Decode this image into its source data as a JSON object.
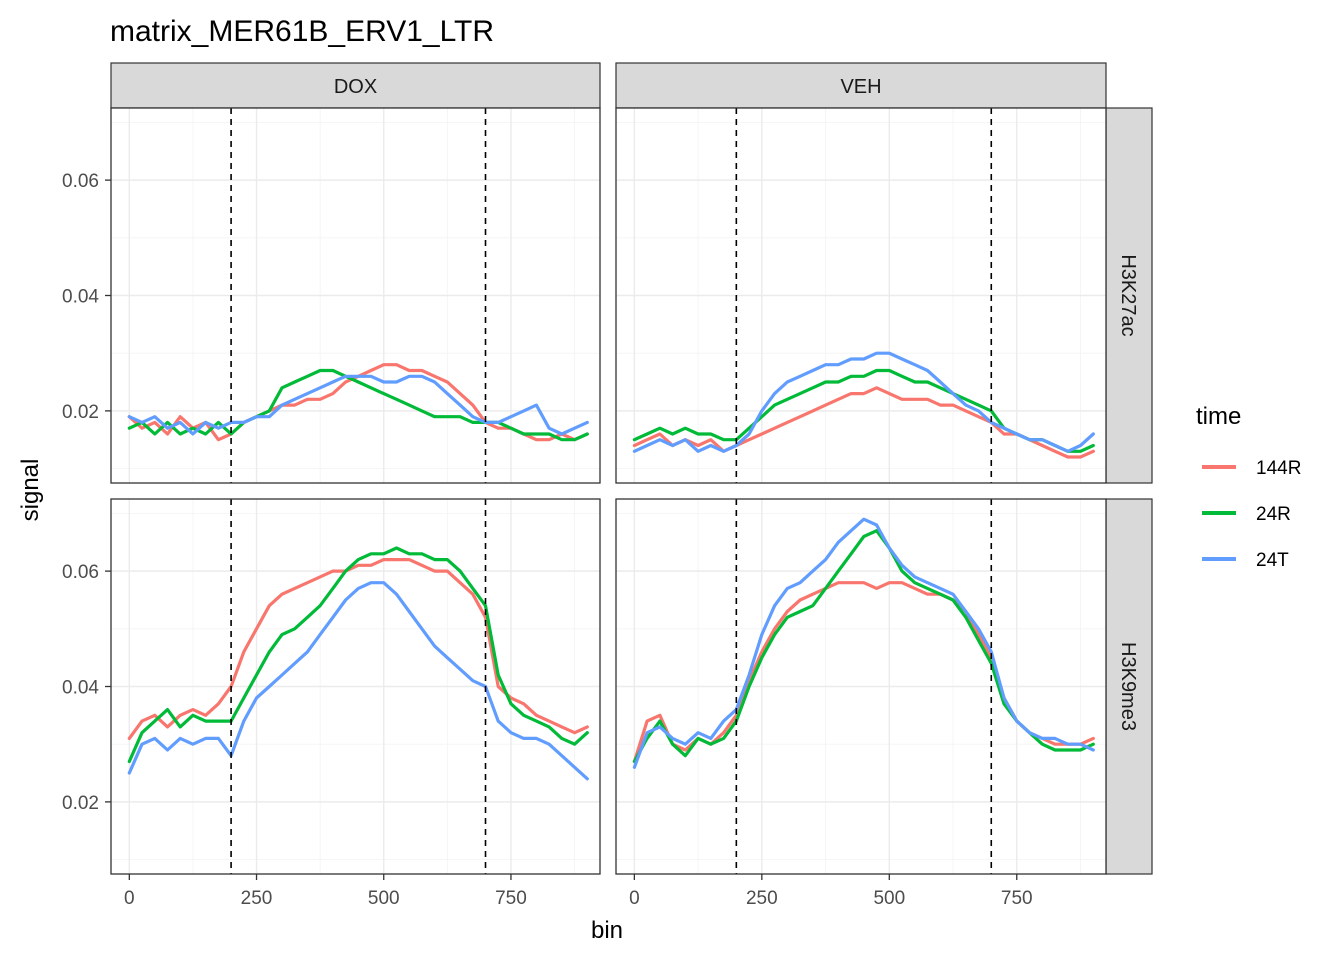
{
  "chart_data": {
    "type": "line",
    "title": "matrix_MER61B_ERV1_LTR",
    "xlabel": "bin",
    "ylabel": "signal",
    "xlim": [
      -36,
      925
    ],
    "ylim": [
      0.0075,
      0.0725
    ],
    "x_ticks": [
      0,
      250,
      500,
      750
    ],
    "x_tick_labels": [
      "0",
      "250",
      "500",
      "750"
    ],
    "y_ticks": [
      0.02,
      0.04,
      0.06
    ],
    "y_tick_labels": [
      "0.02",
      "0.04",
      "0.06"
    ],
    "grid": true,
    "legend_position": "right",
    "legend_title": "time",
    "reference_lines_x": [
      200,
      700
    ],
    "facet_cols": [
      "DOX",
      "VEH"
    ],
    "facet_rows": [
      "H3K27ac",
      "H3K9me3"
    ],
    "series_info": [
      {
        "name": "144R",
        "color": "#F8766D"
      },
      {
        "name": "24R",
        "color": "#00BA38"
      },
      {
        "name": "24T",
        "color": "#619CFF"
      }
    ],
    "x": [
      0,
      25,
      50,
      75,
      100,
      125,
      150,
      175,
      200,
      225,
      250,
      275,
      300,
      325,
      350,
      375,
      400,
      425,
      450,
      475,
      500,
      525,
      550,
      575,
      600,
      625,
      650,
      675,
      700,
      725,
      750,
      775,
      800,
      825,
      850,
      875,
      900
    ],
    "panels": [
      {
        "col": "DOX",
        "row": "H3K27ac",
        "series": [
          {
            "name": "144R",
            "values": [
              0.019,
              0.017,
              0.018,
              0.016,
              0.019,
              0.017,
              0.018,
              0.015,
              0.016,
              0.018,
              0.019,
              0.02,
              0.021,
              0.021,
              0.022,
              0.022,
              0.023,
              0.025,
              0.026,
              0.027,
              0.028,
              0.028,
              0.027,
              0.027,
              0.026,
              0.025,
              0.023,
              0.021,
              0.018,
              0.017,
              0.017,
              0.016,
              0.015,
              0.015,
              0.016,
              0.015,
              0.016
            ]
          },
          {
            "name": "24R",
            "values": [
              0.017,
              0.018,
              0.016,
              0.018,
              0.016,
              0.017,
              0.016,
              0.018,
              0.016,
              0.018,
              0.019,
              0.02,
              0.024,
              0.025,
              0.026,
              0.027,
              0.027,
              0.026,
              0.025,
              0.024,
              0.023,
              0.022,
              0.021,
              0.02,
              0.019,
              0.019,
              0.019,
              0.018,
              0.018,
              0.018,
              0.017,
              0.016,
              0.016,
              0.016,
              0.015,
              0.015,
              0.016
            ]
          },
          {
            "name": "24T",
            "values": [
              0.019,
              0.018,
              0.019,
              0.017,
              0.018,
              0.016,
              0.018,
              0.017,
              0.018,
              0.018,
              0.019,
              0.019,
              0.021,
              0.022,
              0.023,
              0.024,
              0.025,
              0.026,
              0.026,
              0.026,
              0.025,
              0.025,
              0.026,
              0.026,
              0.025,
              0.023,
              0.021,
              0.019,
              0.018,
              0.018,
              0.019,
              0.02,
              0.021,
              0.017,
              0.016,
              0.017,
              0.018
            ]
          }
        ]
      },
      {
        "col": "VEH",
        "row": "H3K27ac",
        "series": [
          {
            "name": "144R",
            "values": [
              0.014,
              0.015,
              0.016,
              0.014,
              0.015,
              0.014,
              0.015,
              0.013,
              0.014,
              0.015,
              0.016,
              0.017,
              0.018,
              0.019,
              0.02,
              0.021,
              0.022,
              0.023,
              0.023,
              0.024,
              0.023,
              0.022,
              0.022,
              0.022,
              0.021,
              0.021,
              0.02,
              0.019,
              0.018,
              0.016,
              0.016,
              0.015,
              0.014,
              0.013,
              0.012,
              0.012,
              0.013
            ]
          },
          {
            "name": "24R",
            "values": [
              0.015,
              0.016,
              0.017,
              0.016,
              0.017,
              0.016,
              0.016,
              0.015,
              0.015,
              0.017,
              0.019,
              0.021,
              0.022,
              0.023,
              0.024,
              0.025,
              0.025,
              0.026,
              0.026,
              0.027,
              0.027,
              0.026,
              0.025,
              0.025,
              0.024,
              0.023,
              0.022,
              0.021,
              0.02,
              0.017,
              0.016,
              0.015,
              0.015,
              0.014,
              0.013,
              0.013,
              0.014
            ]
          },
          {
            "name": "24T",
            "values": [
              0.013,
              0.014,
              0.015,
              0.014,
              0.015,
              0.013,
              0.014,
              0.013,
              0.014,
              0.016,
              0.02,
              0.023,
              0.025,
              0.026,
              0.027,
              0.028,
              0.028,
              0.029,
              0.029,
              0.03,
              0.03,
              0.029,
              0.028,
              0.027,
              0.025,
              0.023,
              0.021,
              0.02,
              0.018,
              0.017,
              0.016,
              0.015,
              0.015,
              0.014,
              0.013,
              0.014,
              0.016
            ]
          }
        ]
      },
      {
        "col": "DOX",
        "row": "H3K9me3",
        "series": [
          {
            "name": "144R",
            "values": [
              0.031,
              0.034,
              0.035,
              0.033,
              0.035,
              0.036,
              0.035,
              0.037,
              0.04,
              0.046,
              0.05,
              0.054,
              0.056,
              0.057,
              0.058,
              0.059,
              0.06,
              0.06,
              0.061,
              0.061,
              0.062,
              0.062,
              0.062,
              0.061,
              0.06,
              0.06,
              0.058,
              0.056,
              0.052,
              0.04,
              0.038,
              0.037,
              0.035,
              0.034,
              0.033,
              0.032,
              0.033
            ]
          },
          {
            "name": "24R",
            "values": [
              0.027,
              0.032,
              0.034,
              0.036,
              0.033,
              0.035,
              0.034,
              0.034,
              0.034,
              0.038,
              0.042,
              0.046,
              0.049,
              0.05,
              0.052,
              0.054,
              0.057,
              0.06,
              0.062,
              0.063,
              0.063,
              0.064,
              0.063,
              0.063,
              0.062,
              0.062,
              0.06,
              0.057,
              0.054,
              0.042,
              0.037,
              0.035,
              0.034,
              0.033,
              0.031,
              0.03,
              0.032
            ]
          },
          {
            "name": "24T",
            "values": [
              0.025,
              0.03,
              0.031,
              0.029,
              0.031,
              0.03,
              0.031,
              0.031,
              0.028,
              0.034,
              0.038,
              0.04,
              0.042,
              0.044,
              0.046,
              0.049,
              0.052,
              0.055,
              0.057,
              0.058,
              0.058,
              0.056,
              0.053,
              0.05,
              0.047,
              0.045,
              0.043,
              0.041,
              0.04,
              0.034,
              0.032,
              0.031,
              0.031,
              0.03,
              0.028,
              0.026,
              0.024
            ]
          }
        ]
      },
      {
        "col": "VEH",
        "row": "H3K9me3",
        "series": [
          {
            "name": "144R",
            "values": [
              0.027,
              0.034,
              0.035,
              0.03,
              0.029,
              0.031,
              0.03,
              0.032,
              0.035,
              0.041,
              0.046,
              0.05,
              0.053,
              0.055,
              0.056,
              0.057,
              0.058,
              0.058,
              0.058,
              0.057,
              0.058,
              0.058,
              0.057,
              0.056,
              0.056,
              0.055,
              0.053,
              0.049,
              0.045,
              0.038,
              0.034,
              0.032,
              0.031,
              0.03,
              0.03,
              0.03,
              0.031
            ]
          },
          {
            "name": "24R",
            "values": [
              0.027,
              0.031,
              0.034,
              0.03,
              0.028,
              0.031,
              0.03,
              0.031,
              0.034,
              0.04,
              0.045,
              0.049,
              0.052,
              0.053,
              0.054,
              0.057,
              0.06,
              0.063,
              0.066,
              0.067,
              0.064,
              0.06,
              0.058,
              0.057,
              0.056,
              0.055,
              0.052,
              0.048,
              0.044,
              0.037,
              0.034,
              0.032,
              0.03,
              0.029,
              0.029,
              0.029,
              0.03
            ]
          },
          {
            "name": "24T",
            "values": [
              0.026,
              0.032,
              0.033,
              0.031,
              0.03,
              0.032,
              0.031,
              0.034,
              0.036,
              0.042,
              0.049,
              0.054,
              0.057,
              0.058,
              0.06,
              0.062,
              0.065,
              0.067,
              0.069,
              0.068,
              0.064,
              0.061,
              0.059,
              0.058,
              0.057,
              0.056,
              0.053,
              0.05,
              0.046,
              0.038,
              0.034,
              0.032,
              0.031,
              0.031,
              0.03,
              0.03,
              0.029
            ]
          }
        ]
      }
    ]
  }
}
